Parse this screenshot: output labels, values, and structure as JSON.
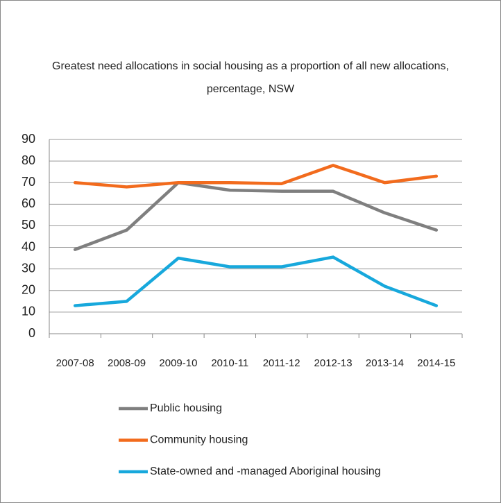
{
  "chart_data": {
    "type": "line",
    "title": "Greatest need allocations in social housing as a proportion of all new allocations, percentage, NSW",
    "categories": [
      "2007-08",
      "2008-09",
      "2009-10",
      "2010-11",
      "2011-12",
      "2012-13",
      "2013-14",
      "2014-15"
    ],
    "series": [
      {
        "name": "Public housing",
        "color": "#7f7f7f",
        "values": [
          39,
          48,
          70,
          66.5,
          66,
          66,
          56,
          48
        ]
      },
      {
        "name": "Community housing",
        "color": "#f26b1d",
        "values": [
          70,
          68,
          70,
          70,
          69.5,
          78,
          70,
          73
        ]
      },
      {
        "name": "State-owned and -managed Aboriginal housing",
        "color": "#17a8dc",
        "values": [
          13,
          15,
          35,
          31,
          31,
          35.5,
          22,
          13
        ]
      }
    ],
    "ylim": [
      0,
      90
    ],
    "yticks": [
      0,
      10,
      20,
      30,
      40,
      50,
      60,
      70,
      80,
      90
    ],
    "grid": true
  }
}
